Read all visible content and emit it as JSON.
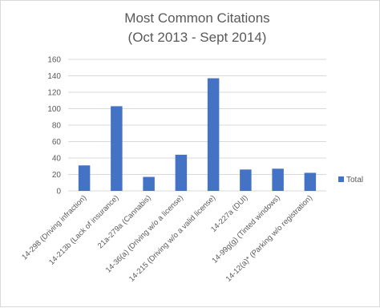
{
  "chart_data": {
    "type": "bar",
    "title": "Most Common Citations",
    "subtitle": "(Oct 2013 - Sept 2014)",
    "categories": [
      "14-298 (Driving infraction)",
      "14-213b (Lack of insurance)",
      "21a-279a (Cannabis)",
      "14-36(a) (Driving w/o a license)",
      "14-215 (Driving w/o a valid license)",
      "14-227a (DUI)",
      "14-99g(g) (Tinted windows)",
      "14-12(a)* (Parking w/o registration)"
    ],
    "series": [
      {
        "name": "Total",
        "values": [
          31,
          103,
          17,
          44,
          137,
          26,
          27,
          22
        ],
        "color": "#4472c4"
      }
    ],
    "ylim": [
      0,
      160
    ],
    "yticks": [
      0,
      20,
      40,
      60,
      80,
      100,
      120,
      140,
      160
    ],
    "grid": true,
    "legend": "right",
    "colors": {
      "bar": "#4472c4",
      "grid": "#d9d9d9",
      "text": "#595959"
    }
  }
}
